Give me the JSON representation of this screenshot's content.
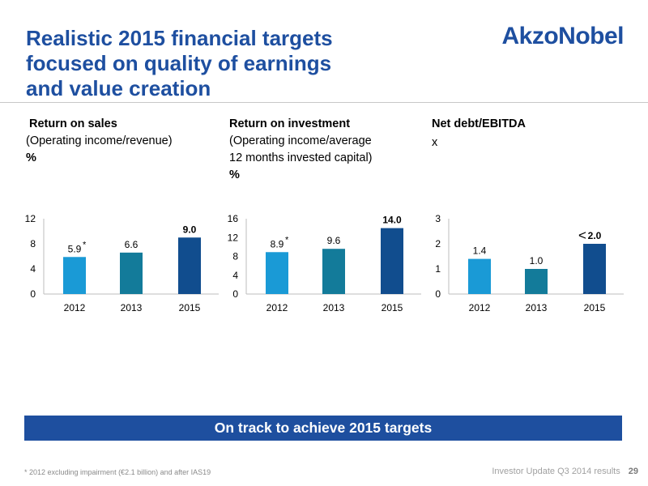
{
  "header": {
    "title_lines": [
      "Realistic 2015 financial targets",
      "focused on quality of earnings",
      "and value creation"
    ],
    "logo": "AkzoNobel"
  },
  "panels": [
    {
      "title": "Return on sales",
      "subtitle_lines": [
        "(Operating income/revenue)"
      ],
      "unit": "%"
    },
    {
      "title": "Return on investment",
      "subtitle_lines": [
        "(Operating income/average",
        "12 months invested capital)"
      ],
      "unit": "%"
    },
    {
      "title": "Net debt/EBITDA",
      "subtitle_lines": [],
      "unit": "x"
    }
  ],
  "chart_data": [
    {
      "type": "bar",
      "categories": [
        "2012",
        "2013",
        "2015"
      ],
      "values": [
        5.9,
        6.6,
        9.0
      ],
      "labels": [
        "5.9",
        "6.6",
        "9.0"
      ],
      "markers": [
        "*",
        "",
        ""
      ],
      "bold": [
        false,
        false,
        true
      ],
      "ylim": [
        0,
        12
      ],
      "yticks": [
        0,
        4,
        8,
        12
      ],
      "colors": [
        "#1a9ad6",
        "#137b9a",
        "#114d8e"
      ]
    },
    {
      "type": "bar",
      "categories": [
        "2012",
        "2013",
        "2015"
      ],
      "values": [
        8.9,
        9.6,
        14.0
      ],
      "labels": [
        "8.9",
        "9.6",
        "14.0"
      ],
      "markers": [
        "*",
        "",
        ""
      ],
      "bold": [
        false,
        false,
        true
      ],
      "ylim": [
        0,
        16
      ],
      "yticks": [
        0,
        4,
        8,
        12,
        16
      ],
      "colors": [
        "#1a9ad6",
        "#137b9a",
        "#114d8e"
      ]
    },
    {
      "type": "bar",
      "categories": [
        "2012",
        "2013",
        "2015"
      ],
      "values": [
        1.4,
        1.0,
        2.0
      ],
      "labels": [
        "1.4",
        "1.0",
        "2.0"
      ],
      "prefix": [
        "",
        "",
        "<"
      ],
      "bold": [
        false,
        false,
        true
      ],
      "ylim": [
        0,
        3
      ],
      "yticks": [
        0,
        1,
        2,
        3
      ],
      "colors": [
        "#1a9ad6",
        "#137b9a",
        "#114d8e"
      ]
    }
  ],
  "banner": "On track to achieve 2015 targets",
  "footer": {
    "footnote": "* 2012 excluding impairment (€2.1 billion) and after IAS19",
    "source": "Investor Update Q3 2014 results",
    "page": "29"
  }
}
